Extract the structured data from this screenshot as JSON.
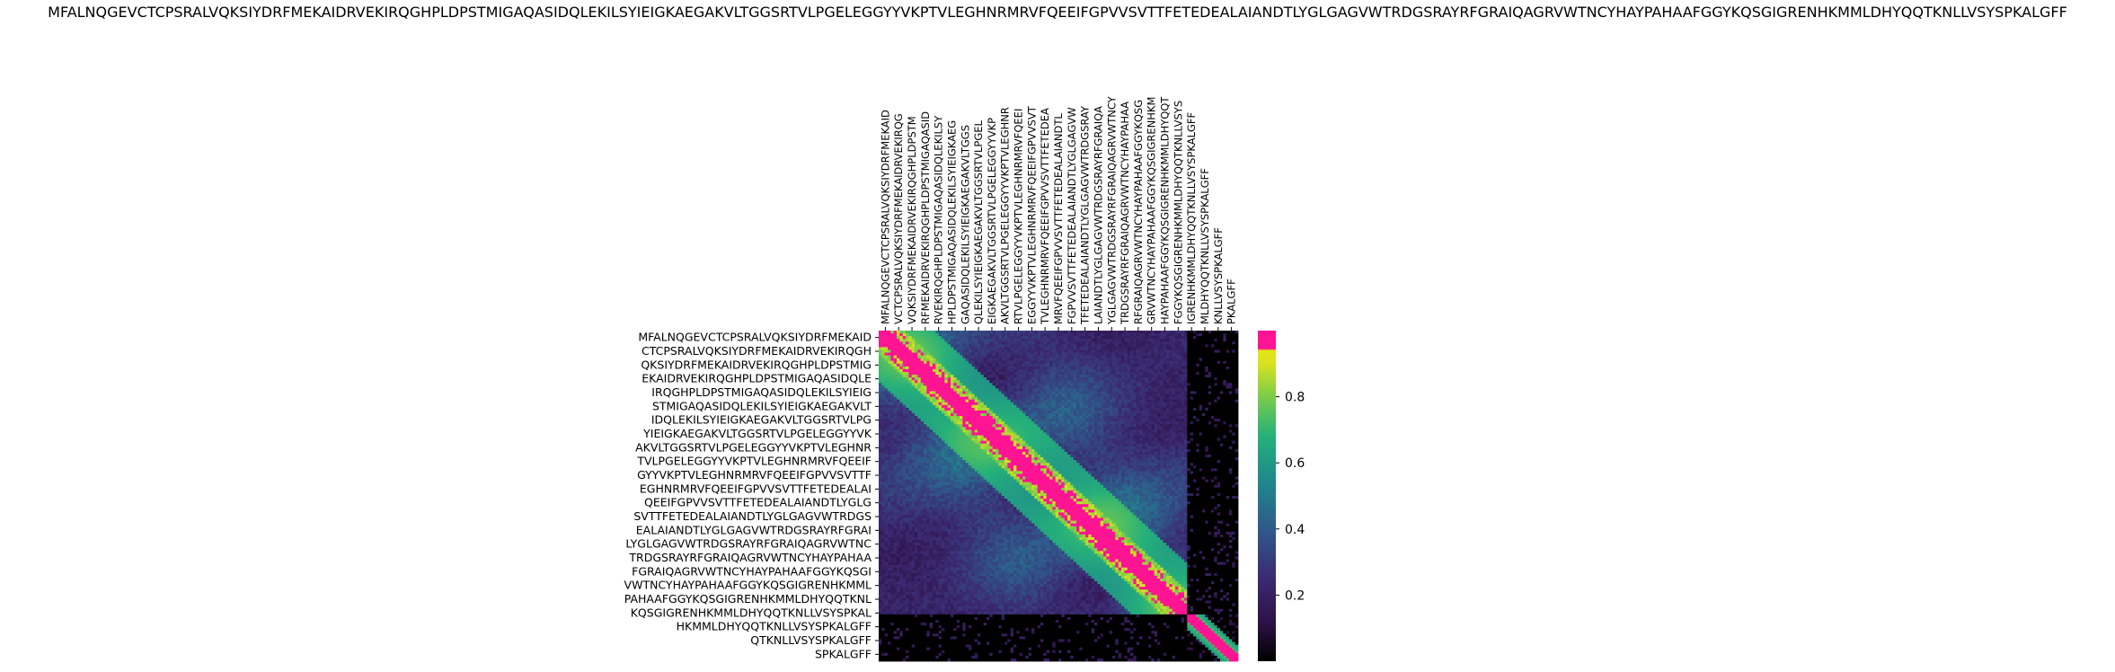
{
  "chart_data": {
    "type": "heatmap",
    "title": "MFALNQGEVCTCPSRALVQKSIYDRFMEKAIDRVEKIRQGHPLDPSTMIGAQASIDQLEKILSYIEIGKAEGAKVLTGGSRTVLPGELEGGYYVKPTVLEGHNRMRVFQEEIFGPVVSVTTFETEDEALAIANDTLYGLGAGVWTRDGSRAYRFGRAIQAGRVWTNCYHAYPAHAAFGGYKQSGIGRENHKMMLDHYQQTKNLLVSYSPKALGFF",
    "xlabel": "",
    "ylabel": "",
    "x_tick_labels": [
      "MFALNQGEVCTCPSRALVQKSIYDRFMEKAID",
      "VCTCPSRALVQKSIYDRFMEKAIDRVEKIRQG",
      "VQKSIYDRFMEKAIDRVEKIRQGHPLDPSTM",
      "RFMEKAIDRVEKIRQGHPLDPSTMIGAQASID",
      "RVEKIRQGHPLDPSTMIGAQASIDQLEKILSY",
      "HPLDPSTMIGAQASIDQLEKILSYIEIGKAEG",
      "GAQASIDQLEKILSYIEIGKAEGAKVLTGGS",
      "QLEKILSYIEIGKAEGAKVLTGGSRTVLPGEL",
      "EIGKAEGAKVLTGGSRTVLPGELEGGYYVKP",
      "AKVLTGGSRTVLPGELEGGYYVKPTVLEGHNR",
      "RTVLPGELEGGYYVKPTVLEGHNRMRVFQEEI",
      "EGGYYVKPTVLEGHNRMRVFQEEIFGPVVSVT",
      "TVLEGHNRMRVFQEEIFGPVVSVTTFETEDEA",
      "MRVFQEEIFGPVVSVTTFETEDEALAIANDTL",
      "FGPVVSVTTFETEDEALAIANDTLYGLGAGVW",
      "TFETEDEALAIANDTLYGLGAGVWTRDGSRAY",
      "LAIANDTLYGLGAGVWTRDGSRAYRFGRAIQA",
      "YGLGAGVWTRDGSRAYRFGRAIQAGRVWTNCY",
      "TRDGSRAYRFGRAIQAGRVWTNCYHAYPAHAA",
      "RFGRAIQAGRVWTNCYHAYPAHAAFGGYKQSG",
      "GRVWTNCYHAYPAHAAFGGYKQSGIGRENHKM",
      "HAYPAHAAFGGYKQSGIGRENHKMMLDHYQQT",
      "FGGYKQSGIGRENHKMMLDHYQQTKNLLVSYS",
      "IGRENHKMMLDHYQQTKNLLVSYSPKALGFF",
      "MLDHYQQTKNLLVSYSPKALGFF",
      "KNLLVSYSPKALGFF",
      "PKALGFF"
    ],
    "y_tick_labels": [
      "MFALNQGEVCTCPSRALVQKSIYDRFMEKAID",
      "CTCPSRALVQKSIYDRFMEKAIDRVEKIRQGH",
      "QKSIYDRFMEKAIDRVEKIRQGHPLDPSTMIG",
      "EKAIDRVEKIRQGHPLDPSTMIGAQASIDQLE",
      "IRQGHPLDPSTMIGAQASIDQLEKILSYIEIG",
      "STMIGAQASIDQLEKILSYIEIGKAEGAKVLT",
      "IDQLEKILSYIEIGKAEGAKVLTGGSRTVLPG",
      "YIEIGKAEGAKVLTGGSRTVLPGELEGGYYVK",
      "AKVLTGGSRTVLPGELEGGYYVKPTVLEGHNR",
      "TVLPGELEGGYYVKPTVLEGHNRMRVFQEEIF",
      "GYYVKPTVLEGHNRMRVFQEEIFGPVVSVTTF",
      "EGHNRMRVFQEEIFGPVVSVTTFETEDEALAI",
      "QEEIFGPVVSVTTFETEDEALAIANDTLYGLG",
      "SVTTFETEDEALAIANDTLYGLGAGVWTRDGS",
      "EALAIANDTLYGLGAGVWTRDGSRAYRFGRAI",
      "LYGLGAGVWTRDGSRAYRFGRAIQAGRVWTNC",
      "TRDGSRAYRFGRAIQAGRVWTNCYHAYPAHAA",
      "FGRAIQAGRVWTNCYHAYPAHAAFGGYKQSGI",
      "VWTNCYHAYPAHAAFGGYKQSGIGRENHKMML",
      "PAHAAFGGYKQSGIGRENHKMMLDHYQQTKNL",
      "KQSGIGRENHKMMLDHYQQTKNLLVSYSPKAL",
      "HKMMLDHYQQTKNLLVSYSPKALGFF",
      "QTKNLLVSYSPKALGFF",
      "SPKALGFF"
    ],
    "colorbar": {
      "ticks": [
        "0.2",
        "0.4",
        "0.6",
        "0.8"
      ],
      "values": [
        0.2,
        0.4,
        0.6,
        0.8
      ],
      "range": [
        0,
        1
      ]
    },
    "colormap": {
      "black": "#000000",
      "dark_purple": "#3b1a5a",
      "indigo": "#2c4a86",
      "blue": "#2a6f94",
      "teal": "#1f9a8a",
      "green": "#3fbe6a",
      "lime": "#c6e02a",
      "yellow": "#e7e419",
      "magenta": "#ff1493"
    },
    "note_values": "Diagonal ~1.0 (magenta); neighbours 0.8-0.95 (yellow/lime); off-diagonal 0.05-0.6; last 3 rows/cols (short peptides) mostly ~0 (black) with own diagonal block magenta."
  }
}
